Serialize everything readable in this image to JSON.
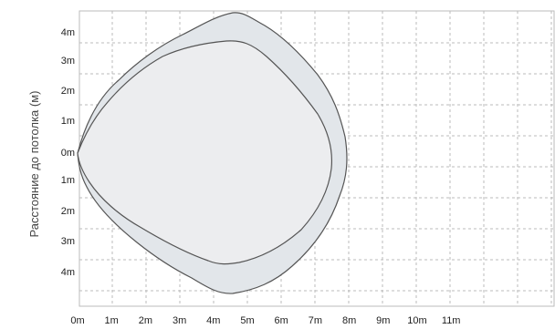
{
  "axis_label": "Расстояние до потолка (м)",
  "x_ticks": [
    "0m",
    "1m",
    "2m",
    "3m",
    "4m",
    "5m",
    "6m",
    "7m",
    "8m",
    "9m",
    "10m",
    "11m"
  ],
  "y_ticks": [
    "4m",
    "3m",
    "2m",
    "1m",
    "0m",
    "1m",
    "2m",
    "3m",
    "4m"
  ]
}
